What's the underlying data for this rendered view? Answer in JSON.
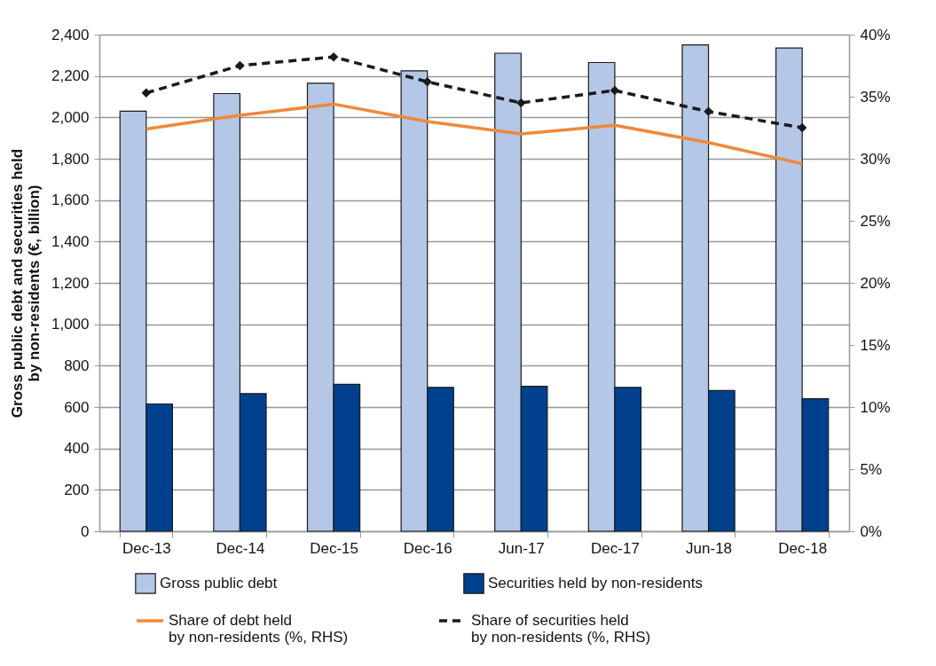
{
  "chart_data": {
    "type": "bar",
    "ylabel": "Gross public debt and securities held\nby non-residents (€, billion)",
    "categories": [
      "Dec-13",
      "Dec-14",
      "Dec-15",
      "Dec-16",
      "Jun-17",
      "Dec-17",
      "Jun-18",
      "Dec-18"
    ],
    "series": [
      {
        "name": "Gross public debt",
        "color": "#b4c7e7",
        "values": [
          2030,
          2115,
          2165,
          2225,
          2310,
          2265,
          2350,
          2335
        ]
      },
      {
        "name": "Securities held by non-residents",
        "color": "#00418e",
        "values": [
          615,
          665,
          710,
          695,
          700,
          695,
          680,
          640
        ]
      },
      {
        "name": "Share of debt held\nby non-residents (%, RHS)",
        "type": "line",
        "axis": "y2",
        "color": "#f0883a",
        "line_style": "solid",
        "values": [
          32.4,
          33.5,
          34.4,
          33.0,
          32.0,
          32.7,
          31.3,
          29.6
        ]
      },
      {
        "name": "Share of securities held\nby non-residents (%, RHS)",
        "type": "line",
        "axis": "y2",
        "color": "#1a1a1a",
        "line_style": "dashed",
        "marker": "diamond",
        "values": [
          35.3,
          37.5,
          38.2,
          36.2,
          34.5,
          35.5,
          33.8,
          32.5
        ]
      }
    ],
    "ylim": [
      0,
      2400
    ],
    "yticks": [
      0,
      200,
      400,
      600,
      800,
      {
        "value": 1000,
        "label": "1,000"
      },
      {
        "value": 1200,
        "label": "1,200"
      },
      {
        "value": 1400,
        "label": "1,400"
      },
      {
        "value": 1600,
        "label": "1,600"
      },
      {
        "value": 1800,
        "label": "1,800"
      },
      {
        "value": 2000,
        "label": "2,000"
      },
      {
        "value": 2200,
        "label": "2,200"
      },
      {
        "value": 2400,
        "label": "2,400"
      }
    ],
    "y2lim": [
      0,
      40
    ],
    "y2ticks": [
      {
        "value": 0,
        "label": "0%"
      },
      {
        "value": 5,
        "label": "5%"
      },
      {
        "value": 10,
        "label": "10%"
      },
      {
        "value": 15,
        "label": "15%"
      },
      {
        "value": 20,
        "label": "20%"
      },
      {
        "value": 25,
        "label": "25%"
      },
      {
        "value": 30,
        "label": "30%"
      },
      {
        "value": 35,
        "label": "35%"
      },
      {
        "value": 40,
        "label": "40%"
      }
    ],
    "grid": "y",
    "legend": "bottom"
  }
}
